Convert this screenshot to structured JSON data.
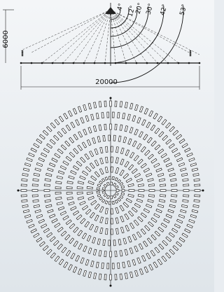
{
  "angle_labels": [
    "4°",
    "12°",
    "20°",
    "30°",
    "42°",
    "53°"
  ],
  "dimensions": {
    "height": "6000",
    "width": "20000"
  }
}
